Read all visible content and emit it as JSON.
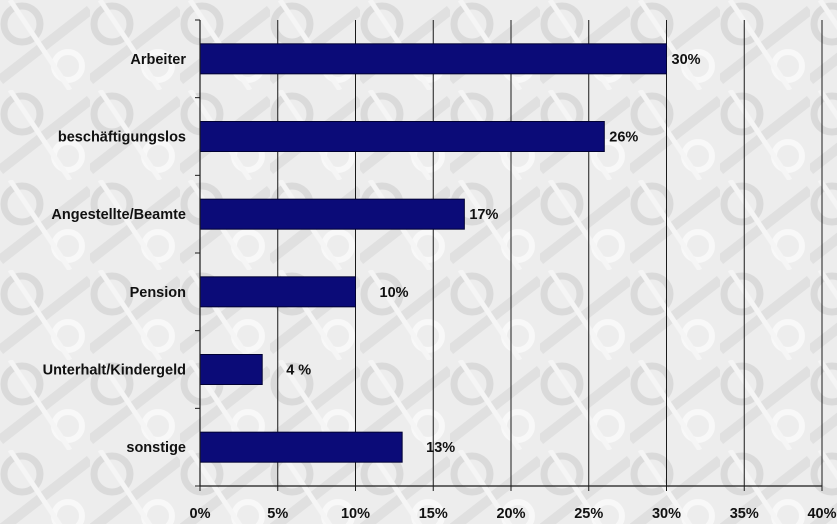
{
  "chart_data": {
    "type": "bar",
    "orientation": "horizontal",
    "categories": [
      "Arbeiter",
      "beschäftigungslos",
      "Angestellte/Beamte",
      "Pension",
      "Unterhalt/Kindergeld",
      "sonstige"
    ],
    "values": [
      30,
      26,
      17,
      10,
      4,
      13
    ],
    "value_labels": [
      "30%",
      "26%",
      "17%",
      "10%",
      "4 %",
      "13%"
    ],
    "xlim": [
      0,
      40
    ],
    "x_ticks": [
      0,
      5,
      10,
      15,
      20,
      25,
      30,
      35,
      40
    ],
    "x_tick_labels": [
      "0%",
      "5%",
      "10%",
      "15%",
      "20%",
      "25%",
      "30%",
      "35%",
      "40%"
    ],
    "title": "",
    "xlabel": "",
    "ylabel": "",
    "grid": "vertical",
    "bar_color": "#0b0b78"
  }
}
